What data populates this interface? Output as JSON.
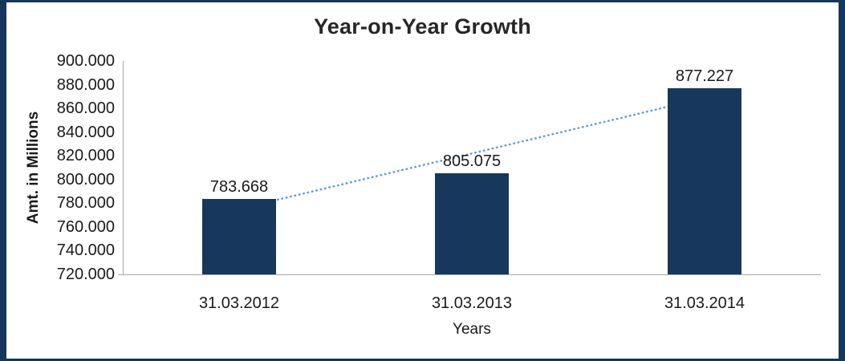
{
  "chart_data": {
    "type": "bar",
    "title": "Year-on-Year Growth",
    "xlabel": "Years",
    "ylabel": "Amt. in Millions",
    "categories": [
      "31.03.2012",
      "31.03.2013",
      "31.03.2014"
    ],
    "values": [
      783.668,
      805.075,
      877.227
    ],
    "data_labels": [
      "783.668",
      "805.075",
      "877.227"
    ],
    "ylim": [
      720,
      900
    ],
    "ytick_interval": 20,
    "ytick_labels": [
      "900.000",
      "880.000",
      "860.000",
      "840.000",
      "820.000",
      "800.000",
      "780.000",
      "760.000",
      "740.000",
      "720.000"
    ],
    "grid": false,
    "legend": false,
    "bar_color": "#17375D",
    "frame_color": "#16365C",
    "axis_color": "#A6A6A6",
    "trendline": {
      "type": "linear",
      "style": "dotted",
      "color": "#5B9BD5"
    }
  }
}
